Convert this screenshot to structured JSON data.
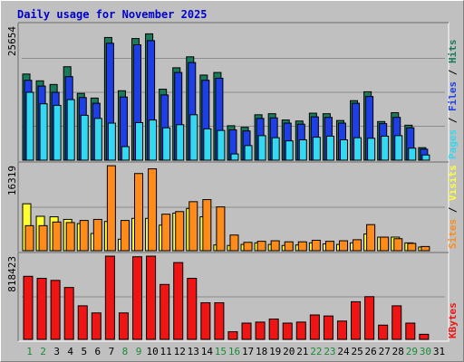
{
  "title": "Daily usage for November 2025",
  "colors": {
    "hits": "#1a7a5a",
    "files": "#1e3fe6",
    "pages": "#33d9f2",
    "visits": "#ffff33",
    "sites": "#ff8c1a",
    "kbytes": "#f01515",
    "panel": "#c0c0c0",
    "grid": "#8c8c8c",
    "title": "#0000cc",
    "weekend_day_label": "#1a8a3a"
  },
  "chart_data": [
    {
      "type": "bar",
      "panel": "hits-files-pages",
      "side_label": [
        "Pages",
        "Files",
        "Hits"
      ],
      "y_max_label": "25654",
      "ylim": [
        0,
        25654
      ],
      "categories": [
        "1",
        "2",
        "3",
        "4",
        "5",
        "6",
        "7",
        "8",
        "9",
        "10",
        "11",
        "12",
        "13",
        "14",
        "15",
        "16",
        "17",
        "18",
        "19",
        "20",
        "21",
        "22",
        "23",
        "24",
        "25",
        "26",
        "27",
        "28",
        "29",
        "30",
        "31"
      ],
      "series": [
        {
          "name": "Hits",
          "values": [
            16500,
            15200,
            14500,
            17900,
            12800,
            11900,
            23500,
            13300,
            23300,
            24200,
            13600,
            17700,
            19800,
            16300,
            16800,
            6600,
            6300,
            8700,
            8900,
            7700,
            7500,
            9000,
            8900,
            7600,
            11400,
            13100,
            7400,
            9100,
            6700,
            2400,
            0
          ]
        },
        {
          "name": "Files",
          "values": [
            15300,
            14200,
            13000,
            16000,
            12000,
            10900,
            22400,
            12100,
            22100,
            22900,
            12500,
            16800,
            18700,
            15300,
            15700,
            5800,
            5600,
            8000,
            8100,
            7100,
            6900,
            8300,
            8200,
            7100,
            10900,
            12200,
            7000,
            8200,
            6200,
            2100,
            0
          ]
        },
        {
          "name": "Pages",
          "values": [
            13000,
            10800,
            10500,
            11600,
            8600,
            8000,
            7100,
            2600,
            7200,
            7700,
            6200,
            6800,
            8700,
            6000,
            5700,
            1200,
            2800,
            4700,
            4300,
            3700,
            3900,
            4400,
            4600,
            3900,
            4300,
            4200,
            4600,
            4700,
            2300,
            1000,
            0
          ]
        }
      ]
    },
    {
      "type": "bar",
      "panel": "sites-visits",
      "side_label": [
        "Sites",
        "Visits"
      ],
      "y_max_label": "16319",
      "ylim": [
        0,
        16319
      ],
      "categories": [
        "1",
        "2",
        "3",
        "4",
        "5",
        "6",
        "7",
        "8",
        "9",
        "10",
        "11",
        "12",
        "13",
        "14",
        "15",
        "16",
        "17",
        "18",
        "19",
        "20",
        "21",
        "22",
        "23",
        "24",
        "25",
        "26",
        "27",
        "28",
        "29",
        "30",
        "31"
      ],
      "series": [
        {
          "name": "Visits",
          "values": [
            9000,
            6600,
            6500,
            6000,
            5200,
            3300,
            5600,
            2200,
            6200,
            6200,
            4900,
            7200,
            8100,
            6500,
            1100,
            1000,
            1200,
            1500,
            1200,
            1000,
            1100,
            1500,
            1300,
            1200,
            1500,
            3200,
            2600,
            2600,
            1500,
            700,
            0
          ]
        },
        {
          "name": "Sites",
          "values": [
            4800,
            4800,
            5500,
            5400,
            5800,
            6000,
            16300,
            5800,
            14800,
            15700,
            7000,
            7500,
            9400,
            9800,
            8400,
            3000,
            1600,
            1800,
            1900,
            1700,
            1700,
            2000,
            1800,
            1900,
            2100,
            5000,
            2600,
            2300,
            1400,
            800,
            0
          ]
        }
      ]
    },
    {
      "type": "bar",
      "panel": "kbytes",
      "side_label": [
        "KBytes"
      ],
      "y_max_label": "818423",
      "ylim": [
        0,
        818423
      ],
      "categories": [
        "1",
        "2",
        "3",
        "4",
        "5",
        "6",
        "7",
        "8",
        "9",
        "10",
        "11",
        "12",
        "13",
        "14",
        "15",
        "16",
        "17",
        "18",
        "19",
        "20",
        "21",
        "22",
        "23",
        "24",
        "25",
        "26",
        "27",
        "28",
        "29",
        "30",
        "31"
      ],
      "series": [
        {
          "name": "KBytes",
          "values": [
            620000,
            600000,
            580000,
            510000,
            330000,
            260000,
            818000,
            260000,
            812000,
            818000,
            540000,
            755000,
            600000,
            360000,
            360000,
            75000,
            160000,
            170000,
            200000,
            160000,
            170000,
            240000,
            230000,
            180000,
            370000,
            420000,
            140000,
            330000,
            160000,
            50000,
            0
          ]
        }
      ]
    }
  ],
  "x_labels": [
    "1",
    "2",
    "3",
    "4",
    "5",
    "6",
    "7",
    "8",
    "9",
    "10",
    "11",
    "12",
    "13",
    "14",
    "15",
    "16",
    "17",
    "18",
    "19",
    "20",
    "21",
    "22",
    "23",
    "24",
    "25",
    "26",
    "27",
    "28",
    "29",
    "30",
    "31"
  ],
  "weekend_days": [
    1,
    2,
    8,
    9,
    15,
    16,
    22,
    23,
    29,
    30
  ]
}
